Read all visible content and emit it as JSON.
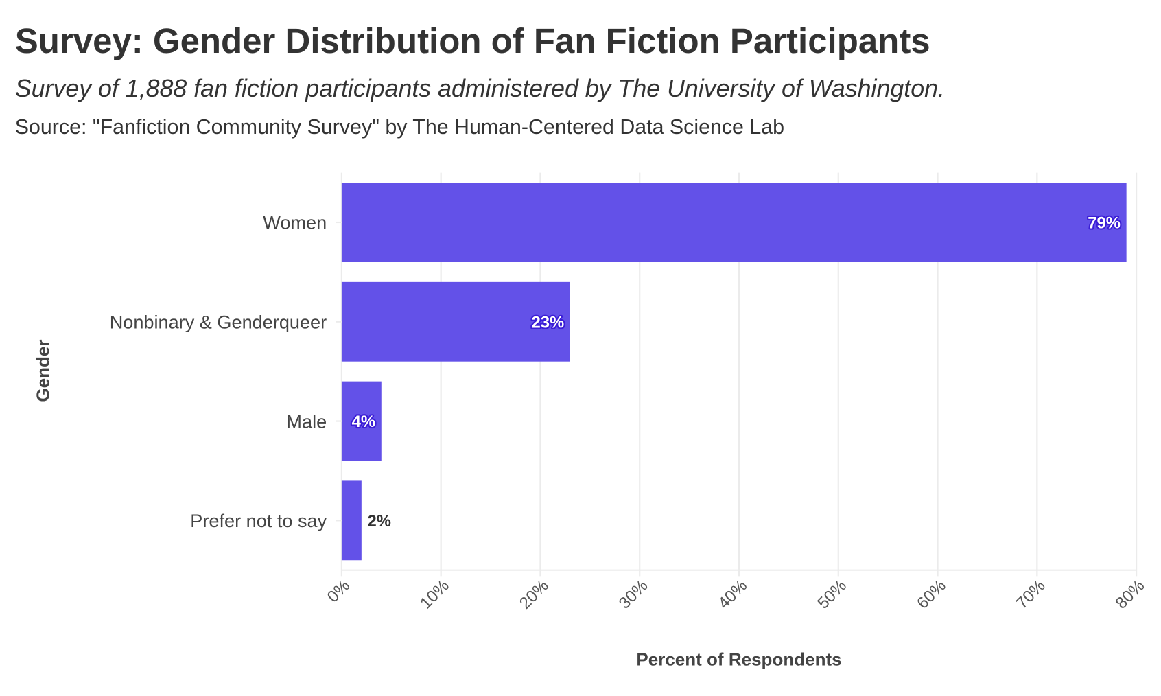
{
  "chart_data": {
    "type": "bar",
    "orientation": "horizontal",
    "title": "Survey: Gender Distribution of Fan Fiction Participants",
    "subtitle": "Survey of 1,888 fan fiction participants administered by The University of Washington.",
    "caption": "Source: \"Fanfiction Community Survey\" by The Human-Centered Data Science Lab",
    "categories": [
      "Women",
      "Nonbinary & Genderqueer",
      "Male",
      "Prefer not to say"
    ],
    "values": [
      79,
      23,
      4,
      2
    ],
    "data_labels": [
      "79%",
      "23%",
      "4%",
      "2%"
    ],
    "xlabel": "Percent of Respondents",
    "ylabel": "Gender",
    "xlim": [
      0,
      80
    ],
    "x_ticks": [
      0,
      10,
      20,
      30,
      40,
      50,
      60,
      70,
      80
    ],
    "x_tick_labels": [
      "0%",
      "10%",
      "20%",
      "30%",
      "40%",
      "50%",
      "60%",
      "70%",
      "80%"
    ],
    "grid": true,
    "legend": "none",
    "bar_color": "#6351e8",
    "label_outline_color": "#3b1ed6"
  }
}
